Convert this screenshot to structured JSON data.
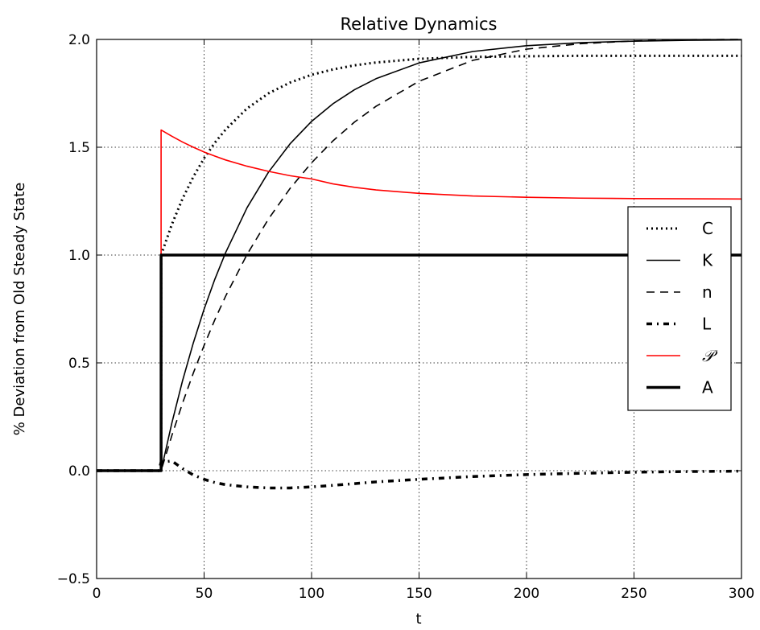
{
  "chart_data": {
    "type": "line",
    "title": "Relative Dynamics",
    "xlabel": "t",
    "ylabel": "% Deviation from Old Steady State",
    "xlim": [
      0,
      300
    ],
    "ylim": [
      -0.5,
      2.0
    ],
    "xticks": [
      0,
      50,
      100,
      150,
      200,
      250,
      300
    ],
    "xtick_labels": [
      "0",
      "50",
      "100",
      "150",
      "200",
      "250",
      "300"
    ],
    "yticks": [
      -0.5,
      0.0,
      0.5,
      1.0,
      1.5,
      2.0
    ],
    "ytick_labels": [
      "−0.5",
      "0.0",
      "0.5",
      "1.0",
      "1.5",
      "2.0"
    ],
    "grid": true,
    "legend_position": "center-right",
    "x": [
      0,
      10,
      20,
      29,
      30,
      35,
      40,
      45,
      50,
      55,
      60,
      70,
      80,
      90,
      100,
      110,
      120,
      130,
      150,
      175,
      200,
      225,
      250,
      275,
      300
    ],
    "series": [
      {
        "name": "C",
        "style": "dotted",
        "color": "#000000",
        "values": [
          0,
          0,
          0,
          0,
          1.0,
          1.142,
          1.262,
          1.363,
          1.449,
          1.521,
          1.582,
          1.68,
          1.75,
          1.8,
          1.836,
          1.861,
          1.88,
          1.893,
          1.91,
          1.919,
          1.922,
          1.924,
          1.924,
          1.924,
          1.924
        ]
      },
      {
        "name": "K",
        "style": "solid",
        "color": "#000000",
        "values": [
          0,
          0,
          0,
          0,
          0,
          0.221,
          0.418,
          0.593,
          0.749,
          0.888,
          1.011,
          1.22,
          1.385,
          1.516,
          1.62,
          1.702,
          1.767,
          1.818,
          1.891,
          1.944,
          1.971,
          1.985,
          1.992,
          1.996,
          1.998
        ]
      },
      {
        "name": "n",
        "style": "dashed",
        "color": "#000000",
        "values": [
          0,
          0,
          0,
          0,
          0,
          0.163,
          0.314,
          0.453,
          0.581,
          0.7,
          0.809,
          1.003,
          1.168,
          1.309,
          1.428,
          1.53,
          1.617,
          1.69,
          1.806,
          1.903,
          1.955,
          1.98,
          1.993,
          1.999,
          2.0
        ]
      },
      {
        "name": "L",
        "style": "dashdot",
        "color": "#000000",
        "values": [
          0,
          0,
          0,
          0,
          0.04,
          0.045,
          0.01,
          -0.02,
          -0.04,
          -0.055,
          -0.065,
          -0.075,
          -0.08,
          -0.08,
          -0.075,
          -0.068,
          -0.06,
          -0.052,
          -0.04,
          -0.027,
          -0.018,
          -0.012,
          -0.007,
          -0.004,
          -0.002
        ]
      },
      {
        "name": "P",
        "legend_label": "𝒫",
        "style": "solid",
        "color": "#ff0000",
        "values": [
          0,
          0,
          0,
          0,
          1.58,
          1.551,
          1.524,
          1.5,
          1.478,
          1.459,
          1.441,
          1.412,
          1.388,
          1.368,
          1.353,
          1.33,
          1.314,
          1.302,
          1.286,
          1.274,
          1.268,
          1.264,
          1.262,
          1.261,
          1.26
        ]
      },
      {
        "name": "A",
        "style": "solid-thick",
        "color": "#000000",
        "values": [
          0,
          0,
          0,
          0,
          1.0,
          1.0,
          1.0,
          1.0,
          1.0,
          1.0,
          1.0,
          1.0,
          1.0,
          1.0,
          1.0,
          1.0,
          1.0,
          1.0,
          1.0,
          1.0,
          1.0,
          1.0,
          1.0,
          1.0,
          1.0
        ]
      }
    ]
  }
}
